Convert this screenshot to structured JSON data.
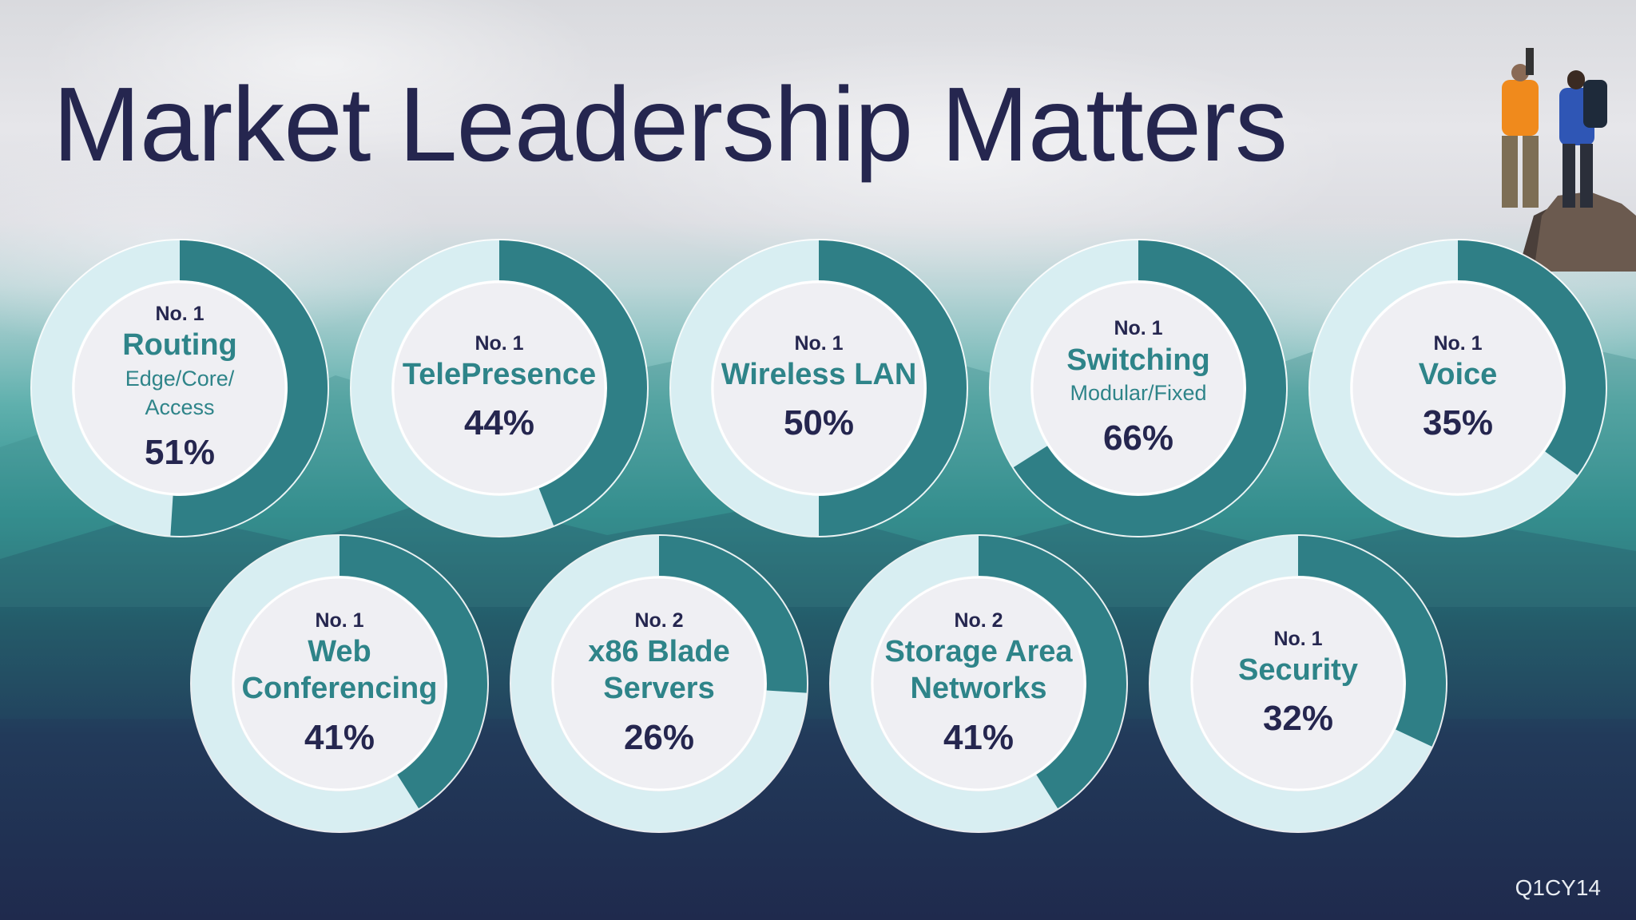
{
  "title": "Market Leadership Matters",
  "footer": "Q1CY14",
  "colors": {
    "title": "#25264f",
    "category": "#2e8489",
    "ring_fill": "#2f7f86",
    "ring_track": "#d8eef2",
    "center": "#efeff3"
  },
  "chart_data": {
    "type": "pie",
    "title": "Market Leadership Matters",
    "items": [
      {
        "rank": "No. 1",
        "category": "Routing",
        "subtitle": "Edge/Core/ Access",
        "share": 51,
        "label": "51%"
      },
      {
        "rank": "No. 1",
        "category": "TelePresence",
        "share": 44,
        "label": "44%"
      },
      {
        "rank": "No. 1",
        "category": "Wireless LAN",
        "share": 50,
        "label": "50%"
      },
      {
        "rank": "No. 1",
        "category": "Switching",
        "subtitle": "Modular/Fixed",
        "share": 66,
        "label": "66%"
      },
      {
        "rank": "No. 1",
        "category": "Voice",
        "share": 35,
        "label": "35%"
      },
      {
        "rank": "No. 1",
        "category": "Web Conferencing",
        "share": 41,
        "label": "41%"
      },
      {
        "rank": "No. 2",
        "category": "x86 Blade Servers",
        "share": 26,
        "label": "26%"
      },
      {
        "rank": "No. 2",
        "category": "Storage Area Networks",
        "share": 41,
        "label": "41%"
      },
      {
        "rank": "No. 1",
        "category": "Security",
        "share": 32,
        "label": "32%"
      }
    ]
  }
}
